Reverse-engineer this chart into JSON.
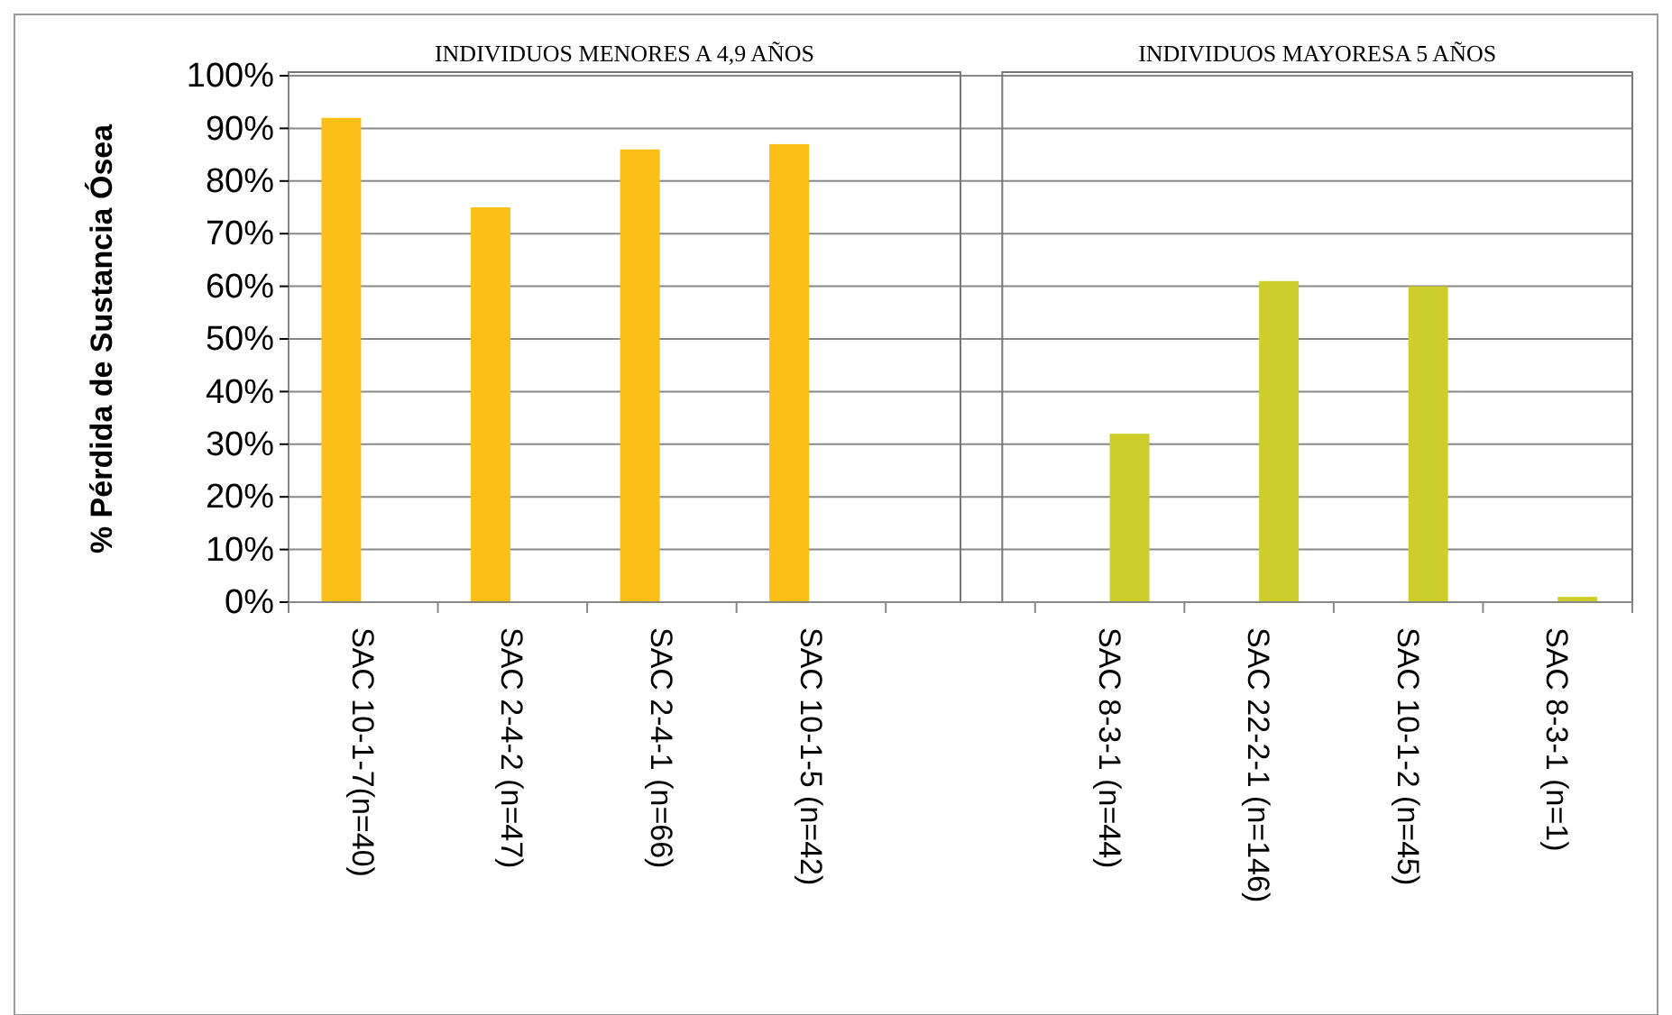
{
  "chart_data": {
    "type": "bar",
    "ylabel": "% Pérdida de Sustancia Ósea",
    "categories": [
      "SAC 10-1-7(n=40)",
      "SAC 2-4-2 (n=47)",
      "SAC 2-4-1 (n=66)",
      "SAC 10-1-5 (n=42)",
      null,
      "SAC 8-3-1 (n=44)",
      "SAC 22-2-1 (n=146)",
      "SAC 10-1-2 (n=45)",
      "SAC 8-3-1 (n=1)"
    ],
    "series": [
      {
        "color": "#fbbf16",
        "values": [
          92,
          75,
          86,
          87,
          null,
          null,
          null,
          null,
          null
        ]
      },
      {
        "color": "#cdce2c",
        "values": [
          null,
          null,
          null,
          null,
          null,
          32,
          61,
          60,
          1
        ]
      }
    ],
    "ylim": [
      0,
      100
    ],
    "yticks": [
      {
        "value": 0,
        "label": "0%"
      },
      {
        "value": 10,
        "label": "10%"
      },
      {
        "value": 20,
        "label": "20%"
      },
      {
        "value": 30,
        "label": "30%"
      },
      {
        "value": 40,
        "label": "40%"
      },
      {
        "value": 50,
        "label": "50%"
      },
      {
        "value": 60,
        "label": "60%"
      },
      {
        "value": 70,
        "label": "70%"
      },
      {
        "value": 80,
        "label": "80%"
      },
      {
        "value": 90,
        "label": "90%"
      },
      {
        "value": 100,
        "label": "100%"
      }
    ],
    "grid": "y",
    "annotations": [
      "INDIVIDUOS MENORES A 4,9 AÑOS",
      "INDIVIDUOS MAYORESA 5 AÑOS"
    ]
  }
}
